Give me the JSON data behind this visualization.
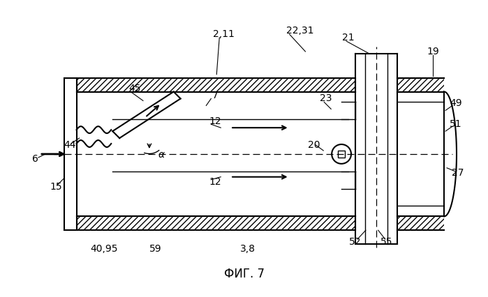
{
  "title": "ФИГ. 7",
  "bg_color": "#ffffff",
  "line_color": "#000000",
  "fig_width": 6.99,
  "fig_height": 4.26,
  "dpi": 100
}
